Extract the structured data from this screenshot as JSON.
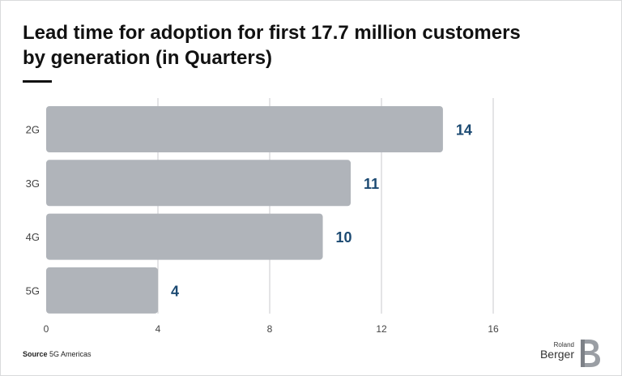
{
  "title": "Lead time for adoption for first 17.7 million customers by generation (in Quarters)",
  "source": {
    "label": "Source",
    "text": "5G Americas"
  },
  "logo": {
    "line1": "Roland",
    "line2": "Berger",
    "mark": "B"
  },
  "colors": {
    "bar": "#b0b4ba",
    "value_label": "#1c4a72",
    "grid": "#c8cacd",
    "axis_text": "#444444"
  },
  "chart_data": {
    "type": "bar",
    "orientation": "horizontal",
    "categories": [
      "2G",
      "3G",
      "4G",
      "5G"
    ],
    "values": [
      14,
      11,
      10,
      4
    ],
    "bar_ends": [
      14.2,
      10.9,
      9.9,
      4.0
    ],
    "data_labels": [
      "14",
      "11",
      "10",
      "4"
    ],
    "xlim": [
      0,
      16
    ],
    "xticks": [
      0,
      4,
      8,
      12,
      16
    ],
    "grid": true
  }
}
